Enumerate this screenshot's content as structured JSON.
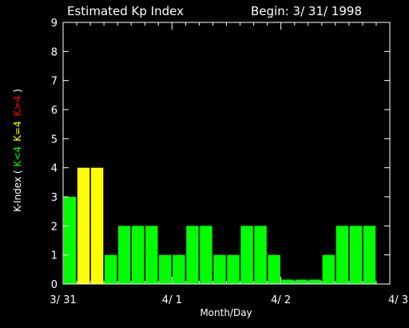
{
  "chart_data": {
    "type": "bar",
    "title": "Estimated Kp Index",
    "begin_label": "Begin: 3/ 31/ 1998",
    "xlabel": "Month/Day",
    "ylabel": {
      "prefix": "K-Index (",
      "low": "K<4",
      "mid": "K=4",
      "high": "K>4",
      "suffix": ")"
    },
    "ylim": [
      0,
      9
    ],
    "yticks": [
      "0",
      "1",
      "2",
      "3",
      "4",
      "5",
      "6",
      "7",
      "8",
      "9"
    ],
    "xlim": [
      0,
      24
    ],
    "xticks": [
      {
        "label": "3/ 31",
        "x": 0
      },
      {
        "label": "4/ 1",
        "x": 8
      },
      {
        "label": "4/ 2",
        "x": 16
      },
      {
        "label": "4/ 3",
        "x": 24
      }
    ],
    "values": [
      3,
      4,
      4,
      1,
      2,
      2,
      2,
      1,
      1,
      2,
      2,
      1,
      1,
      2,
      2,
      1,
      0.15,
      0.15,
      0.15,
      1,
      2,
      2,
      2
    ],
    "colors": {
      "low": "#00ff00",
      "mid": "#ffff00",
      "high": "#ff0000",
      "axes": "#ffffff",
      "background": "#000000"
    }
  }
}
